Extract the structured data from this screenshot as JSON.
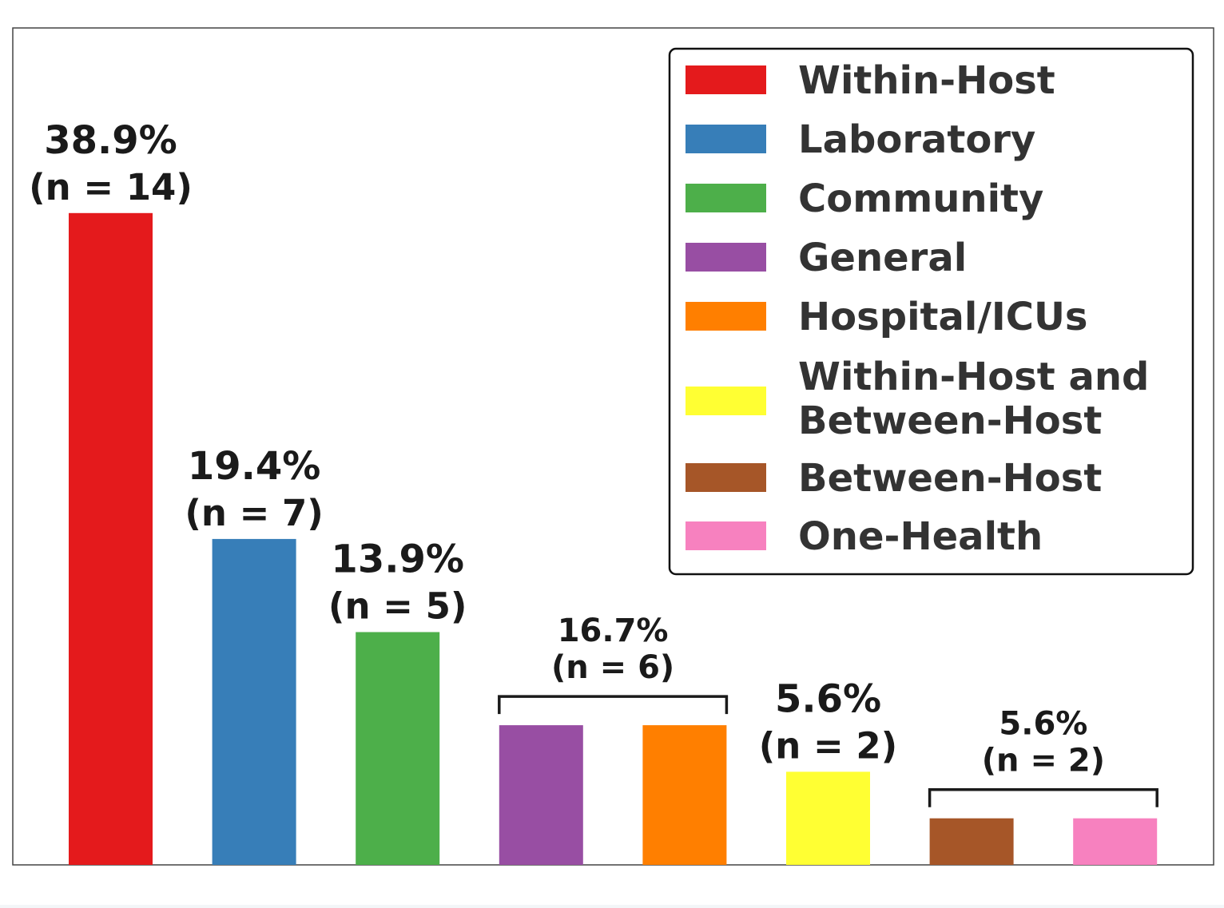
{
  "chart_data": {
    "type": "bar",
    "title": "",
    "xlabel": "",
    "ylabel": "",
    "ylim": [
      0,
      16
    ],
    "grid": false,
    "legend_position": "top-right",
    "categories": [
      "Within-Host",
      "Laboratory",
      "Community",
      "General",
      "Hospital/ICUs",
      "Within-Host and Between-Host",
      "Between-Host",
      "One-Health"
    ],
    "values": [
      14,
      7,
      5,
      3,
      3,
      2,
      1,
      1
    ],
    "colors": [
      "#e41a1c",
      "#377eb8",
      "#4daf4a",
      "#984ea3",
      "#ff7f00",
      "#ffff33",
      "#a65628",
      "#f781bf"
    ],
    "legend": [
      {
        "label": "Within-Host",
        "color": "#e41a1c"
      },
      {
        "label": "Laboratory",
        "color": "#377eb8"
      },
      {
        "label": "Community",
        "color": "#4daf4a"
      },
      {
        "label": "General",
        "color": "#984ea3"
      },
      {
        "label": "Hospital/ICUs",
        "color": "#ff7f00"
      },
      {
        "label": "Within-Host and Between-Host",
        "color": "#ffff33"
      },
      {
        "label": "Between-Host",
        "color": "#a65628"
      },
      {
        "label": "One-Health",
        "color": "#f781bf"
      }
    ],
    "annotations": [
      {
        "bars": [
          0
        ],
        "pct": "38.9%",
        "n": "(n = 14)",
        "bracket": false
      },
      {
        "bars": [
          1
        ],
        "pct": "19.4%",
        "n": "(n = 7)",
        "bracket": false
      },
      {
        "bars": [
          2
        ],
        "pct": "13.9%",
        "n": "(n = 5)",
        "bracket": false
      },
      {
        "bars": [
          3,
          4
        ],
        "pct": "16.7%",
        "n": "(n = 6)",
        "bracket": true
      },
      {
        "bars": [
          5
        ],
        "pct": "5.6%",
        "n": "(n = 2)",
        "bracket": false
      },
      {
        "bars": [
          6,
          7
        ],
        "pct": "5.6%",
        "n": "(n = 2)",
        "bracket": true
      }
    ]
  }
}
